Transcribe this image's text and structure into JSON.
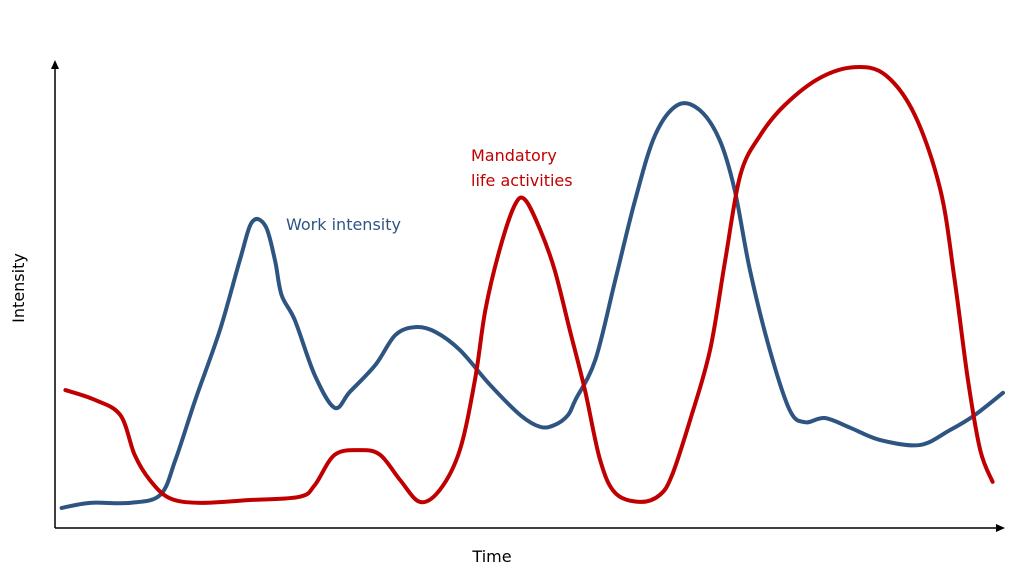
{
  "chart_data": {
    "type": "line",
    "x_label": "Time",
    "y_label": "Intensity",
    "xlim": [
      0,
      100
    ],
    "ylim": [
      0,
      100
    ],
    "series": [
      {
        "name": "Work intensity",
        "color": "#2e5582",
        "x": [
          0.7,
          3.7,
          7.9,
          11.1,
          12.7,
          14.8,
          17.4,
          19.5,
          20.8,
          22.2,
          23.2,
          23.9,
          25.3,
          27.4,
          29.5,
          31.1,
          33.8,
          35.9,
          38.0,
          40.1,
          42.7,
          45.9,
          49.1,
          51.2,
          52.7,
          54.1,
          54.9,
          57.0,
          59.1,
          61.2,
          63.3,
          65.7,
          68.0,
          70.1,
          71.7,
          73.3,
          75.4,
          77.5,
          79.1,
          81.2,
          83.9,
          87.0,
          91.2,
          94.4,
          97.0,
          100.0
        ],
        "values": [
          4.3,
          5.4,
          5.4,
          7.1,
          14.6,
          27.5,
          42.5,
          57.5,
          65.7,
          64.8,
          57.5,
          50.0,
          44.6,
          32.8,
          25.8,
          29.2,
          35.0,
          41.4,
          43.1,
          42.1,
          38.2,
          30.7,
          24.2,
          21.7,
          22.1,
          24.2,
          27.5,
          36.1,
          53.2,
          70.4,
          84.3,
          90.8,
          89.7,
          83.3,
          72.5,
          55.4,
          38.2,
          25.3,
          22.7,
          23.6,
          21.5,
          18.9,
          17.8,
          21.0,
          24.2,
          29.0
        ]
      },
      {
        "name": "Mandatory\nlife activities",
        "color": "#c00000",
        "x": [
          1.1,
          4.2,
          6.9,
          8.4,
          10.0,
          12.1,
          15.3,
          20.6,
          25.8,
          27.4,
          29.5,
          32.2,
          34.3,
          36.4,
          38.5,
          40.6,
          42.7,
          44.3,
          45.4,
          46.9,
          48.5,
          49.6,
          51.2,
          52.7,
          54.3,
          55.9,
          57.5,
          59.1,
          61.7,
          63.8,
          65.1,
          67.0,
          69.1,
          70.7,
          72.3,
          74.4,
          77.0,
          80.7,
          84.4,
          87.6,
          90.7,
          93.4,
          94.9,
          96.3,
          97.6,
          98.9
        ],
        "values": [
          29.6,
          27.5,
          24.2,
          15.7,
          10.3,
          6.4,
          5.4,
          6.0,
          6.7,
          9.2,
          15.7,
          16.7,
          15.7,
          10.3,
          5.6,
          8.2,
          16.7,
          31.8,
          46.8,
          59.7,
          69.3,
          70.4,
          63.9,
          55.4,
          42.5,
          29.6,
          14.6,
          7.5,
          5.6,
          7.1,
          11.4,
          23.2,
          38.2,
          57.5,
          75.8,
          84.3,
          90.8,
          96.6,
          98.9,
          97.2,
          88.6,
          72.5,
          53.2,
          31.8,
          16.7,
          9.9
        ]
      }
    ]
  }
}
